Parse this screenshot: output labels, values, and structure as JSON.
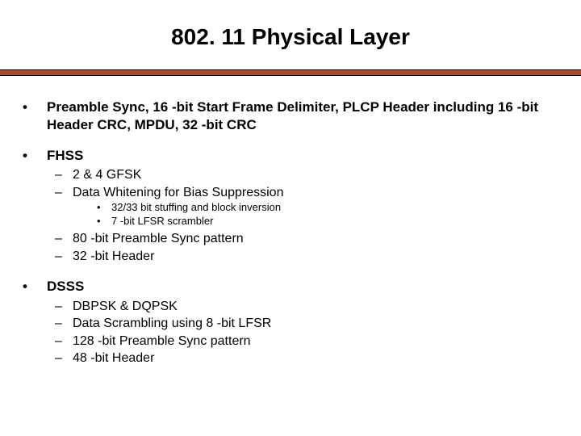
{
  "slide": {
    "title": "802. 11 Physical Layer",
    "title_fontsize": 28,
    "title_color": "#000000",
    "background_color": "#ffffff",
    "divider_color": "#a84a2a",
    "bullet0_mark": "•",
    "bullet1_mark": "–",
    "bullet2_mark": "•",
    "level0_fontsize": 17,
    "level1_fontsize": 16,
    "level2_fontsize": 13,
    "items": [
      {
        "text": "Preamble Sync, 16 -bit Start Frame Delimiter, PLCP Header including 16 -bit Header CRC, MPDU, 32 -bit CRC"
      },
      {
        "text": "FHSS",
        "children": [
          {
            "text": "2 & 4 GFSK"
          },
          {
            "text": "Data Whitening for Bias Suppression",
            "children": [
              {
                "text": "32/33 bit stuffing and block inversion"
              },
              {
                "text": "7 -bit LFSR scrambler"
              }
            ]
          },
          {
            "text": "80 -bit Preamble Sync pattern"
          },
          {
            "text": "32 -bit Header"
          }
        ]
      },
      {
        "text": "DSSS",
        "children": [
          {
            "text": "DBPSK & DQPSK"
          },
          {
            "text": "Data Scrambling using 8 -bit LFSR"
          },
          {
            "text": "128 -bit Preamble Sync pattern"
          },
          {
            "text": "48 -bit Header"
          }
        ]
      }
    ]
  }
}
